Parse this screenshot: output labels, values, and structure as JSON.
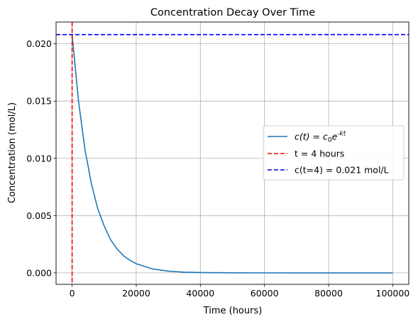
{
  "chart_data": {
    "type": "line",
    "title": "Concentration Decay Over Time",
    "xlabel": "Time (hours)",
    "ylabel": "Concentration (mol/L)",
    "xlim": [
      -5000,
      105000
    ],
    "ylim": [
      -0.001,
      0.0219
    ],
    "xticks": [
      0,
      20000,
      40000,
      60000,
      80000,
      100000
    ],
    "xtick_labels": [
      "0",
      "20000",
      "40000",
      "60000",
      "80000",
      "100000"
    ],
    "yticks": [
      0.0,
      0.005,
      0.01,
      0.015,
      0.02
    ],
    "ytick_labels": [
      "0.000",
      "0.005",
      "0.010",
      "0.015",
      "0.020"
    ],
    "grid": true,
    "legend_position": "center-right",
    "series": [
      {
        "name": "c(t) = c0e^-kt",
        "kind": "curve",
        "color": "#1f77b4",
        "style": "solid",
        "x": [
          0,
          2000,
          4000,
          6000,
          8000,
          10000,
          12000,
          14000,
          16000,
          18000,
          20000,
          25000,
          30000,
          35000,
          40000,
          50000,
          60000,
          70000,
          80000,
          90000,
          100000
        ],
        "y": [
          0.0208,
          0.015,
          0.0108,
          0.0078,
          0.0056,
          0.0041,
          0.0029,
          0.0021,
          0.0015,
          0.0011,
          0.0008,
          0.00035,
          0.00015,
          6e-05,
          3e-05,
          5e-06,
          1e-06,
          0,
          0,
          0,
          0
        ]
      },
      {
        "name": "t = 4 hours",
        "kind": "vline",
        "x": 4,
        "color": "#ff0000",
        "style": "dashed"
      },
      {
        "name": "c(t=4) = 0.021 mol/L",
        "kind": "hline",
        "y": 0.0208,
        "color": "#0000ff",
        "style": "dashed"
      }
    ]
  }
}
